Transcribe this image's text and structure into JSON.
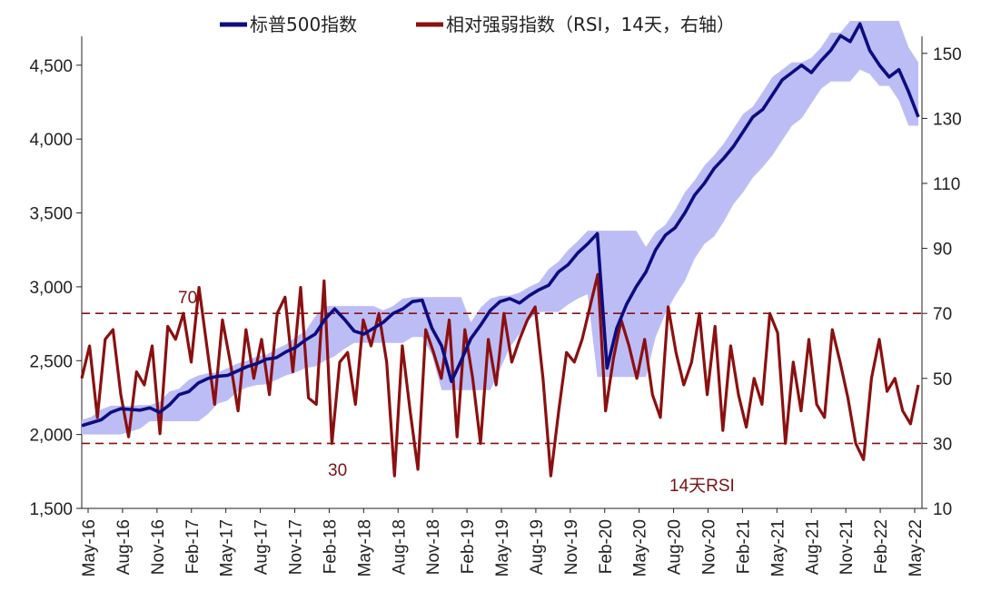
{
  "chart_data": {
    "type": "line",
    "title": "",
    "legend": {
      "placement": "top-center",
      "entries": [
        {
          "label": "标普500指数",
          "color": "#0d0d80"
        },
        {
          "label": "相对强弱指数（RSI，14天，右轴）",
          "color": "#8b1010"
        }
      ]
    },
    "colors": {
      "spx": "#0d0d80",
      "rsi": "#8b1010",
      "band": "#bdbdf6",
      "threshold": "#8b1010"
    },
    "x_labels": [
      "May-16",
      "Aug-16",
      "Nov-16",
      "Feb-17",
      "May-17",
      "Aug-17",
      "Nov-17",
      "Feb-18",
      "May-18",
      "Aug-18",
      "Nov-18",
      "Feb-19",
      "May-19",
      "Aug-19",
      "Nov-19",
      "Feb-20",
      "May-20",
      "Aug-20",
      "Nov-20",
      "Feb-21",
      "May-21",
      "Aug-21",
      "Nov-21",
      "Feb-22",
      "May-22"
    ],
    "y_left": {
      "min": 1500,
      "max": 4800,
      "ticks": [
        "1,500",
        "2,000",
        "2,500",
        "3,000",
        "3,500",
        "4,000",
        "4,500"
      ],
      "tick_values": [
        1500,
        2000,
        2500,
        3000,
        3500,
        4000,
        4500
      ]
    },
    "y_right": {
      "min": 10,
      "max": 160,
      "ticks": [
        "10",
        "30",
        "50",
        "70",
        "90",
        "110",
        "130",
        "150"
      ],
      "tick_values": [
        10,
        30,
        50,
        70,
        90,
        110,
        130,
        150
      ]
    },
    "grid": false,
    "thresholds": [
      70,
      30
    ],
    "annotations": {
      "upper": "70",
      "lower": "30",
      "rsi_label": "14天RSI"
    },
    "series": [
      {
        "name": "标普500指数",
        "axis": "left",
        "values": [
          2060,
          2080,
          2100,
          2150,
          2175,
          2170,
          2165,
          2180,
          2150,
          2200,
          2270,
          2290,
          2350,
          2380,
          2395,
          2400,
          2430,
          2460,
          2480,
          2510,
          2520,
          2560,
          2590,
          2640,
          2680,
          2780,
          2850,
          2780,
          2700,
          2680,
          2720,
          2760,
          2820,
          2850,
          2900,
          2910,
          2720,
          2600,
          2360,
          2500,
          2650,
          2740,
          2840,
          2900,
          2920,
          2890,
          2940,
          2980,
          3010,
          3100,
          3150,
          3230,
          3290,
          3360,
          2450,
          2720,
          2880,
          3000,
          3100,
          3250,
          3350,
          3400,
          3500,
          3620,
          3700,
          3800,
          3870,
          3950,
          4050,
          4150,
          4200,
          4300,
          4400,
          4450,
          4500,
          4450,
          4530,
          4600,
          4700,
          4660,
          4780,
          4600,
          4500,
          4420,
          4470,
          4320,
          4150
        ]
      },
      {
        "name": "相对强弱指数（RSI，14天，右轴）",
        "axis": "right",
        "values": [
          50,
          60,
          38,
          62,
          65,
          45,
          32,
          52,
          48,
          60,
          33,
          66,
          62,
          70,
          55,
          78,
          60,
          42,
          68,
          55,
          40,
          65,
          50,
          62,
          45,
          70,
          75,
          52,
          78,
          44,
          42,
          80,
          30,
          55,
          58,
          42,
          68,
          60,
          70,
          55,
          20,
          60,
          40,
          22,
          65,
          58,
          50,
          68,
          32,
          65,
          50,
          30,
          62,
          48,
          70,
          55,
          62,
          68,
          72,
          50,
          20,
          40,
          58,
          55,
          62,
          72,
          82,
          40,
          56,
          68,
          60,
          50,
          62,
          45,
          38,
          72,
          58,
          48,
          55,
          70,
          45,
          66,
          34,
          60,
          45,
          35,
          50,
          42,
          70,
          64,
          30,
          55,
          40,
          62,
          42,
          38,
          65,
          55,
          44,
          30,
          25,
          50,
          62,
          46,
          50,
          40,
          36,
          48
        ]
      }
    ]
  }
}
